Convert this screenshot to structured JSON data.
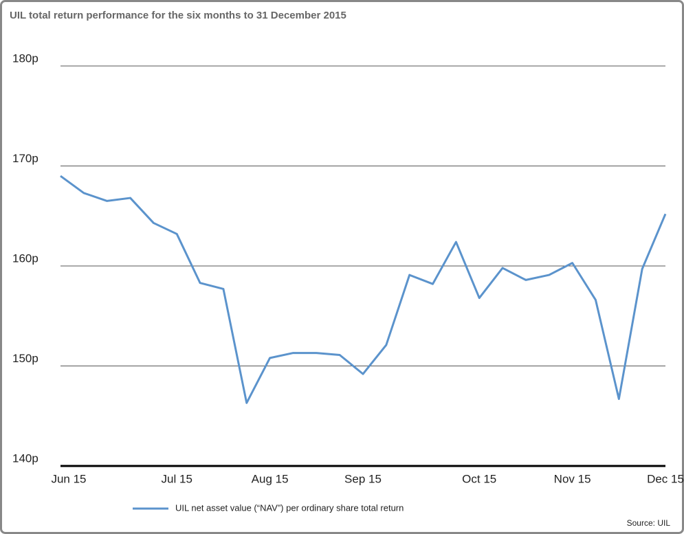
{
  "chart_data": {
    "type": "line",
    "title": "UIL total return performance for the six months to 31 December 2015",
    "source": "Source: UIL",
    "categories": [
      "Jun 15",
      null,
      null,
      null,
      null,
      "Jul 15",
      null,
      null,
      null,
      "Aug 15",
      null,
      null,
      null,
      "Sep 15",
      null,
      null,
      null,
      null,
      "Oct 15",
      null,
      null,
      null,
      "Nov 15",
      null,
      null,
      null,
      "Dec 15"
    ],
    "series": [
      {
        "name": "UIL net asset value (“NAV”) per ordinary share total return",
        "color": "#5b93cc",
        "values": [
          169.0,
          167.3,
          166.5,
          166.8,
          164.3,
          163.2,
          158.3,
          157.7,
          146.3,
          150.8,
          151.3,
          151.3,
          151.1,
          149.2,
          152.1,
          159.1,
          158.2,
          162.4,
          156.8,
          159.8,
          158.6,
          159.1,
          160.3,
          156.6,
          146.7,
          159.7,
          165.2
        ]
      }
    ],
    "ylim": [
      140,
      180
    ],
    "yticks": [
      {
        "value": 140,
        "label": "140p"
      },
      {
        "value": 150,
        "label": "150p"
      },
      {
        "value": 160,
        "label": "160p"
      },
      {
        "value": 170,
        "label": "170p"
      },
      {
        "value": 180,
        "label": "180p"
      }
    ],
    "grid": true
  }
}
